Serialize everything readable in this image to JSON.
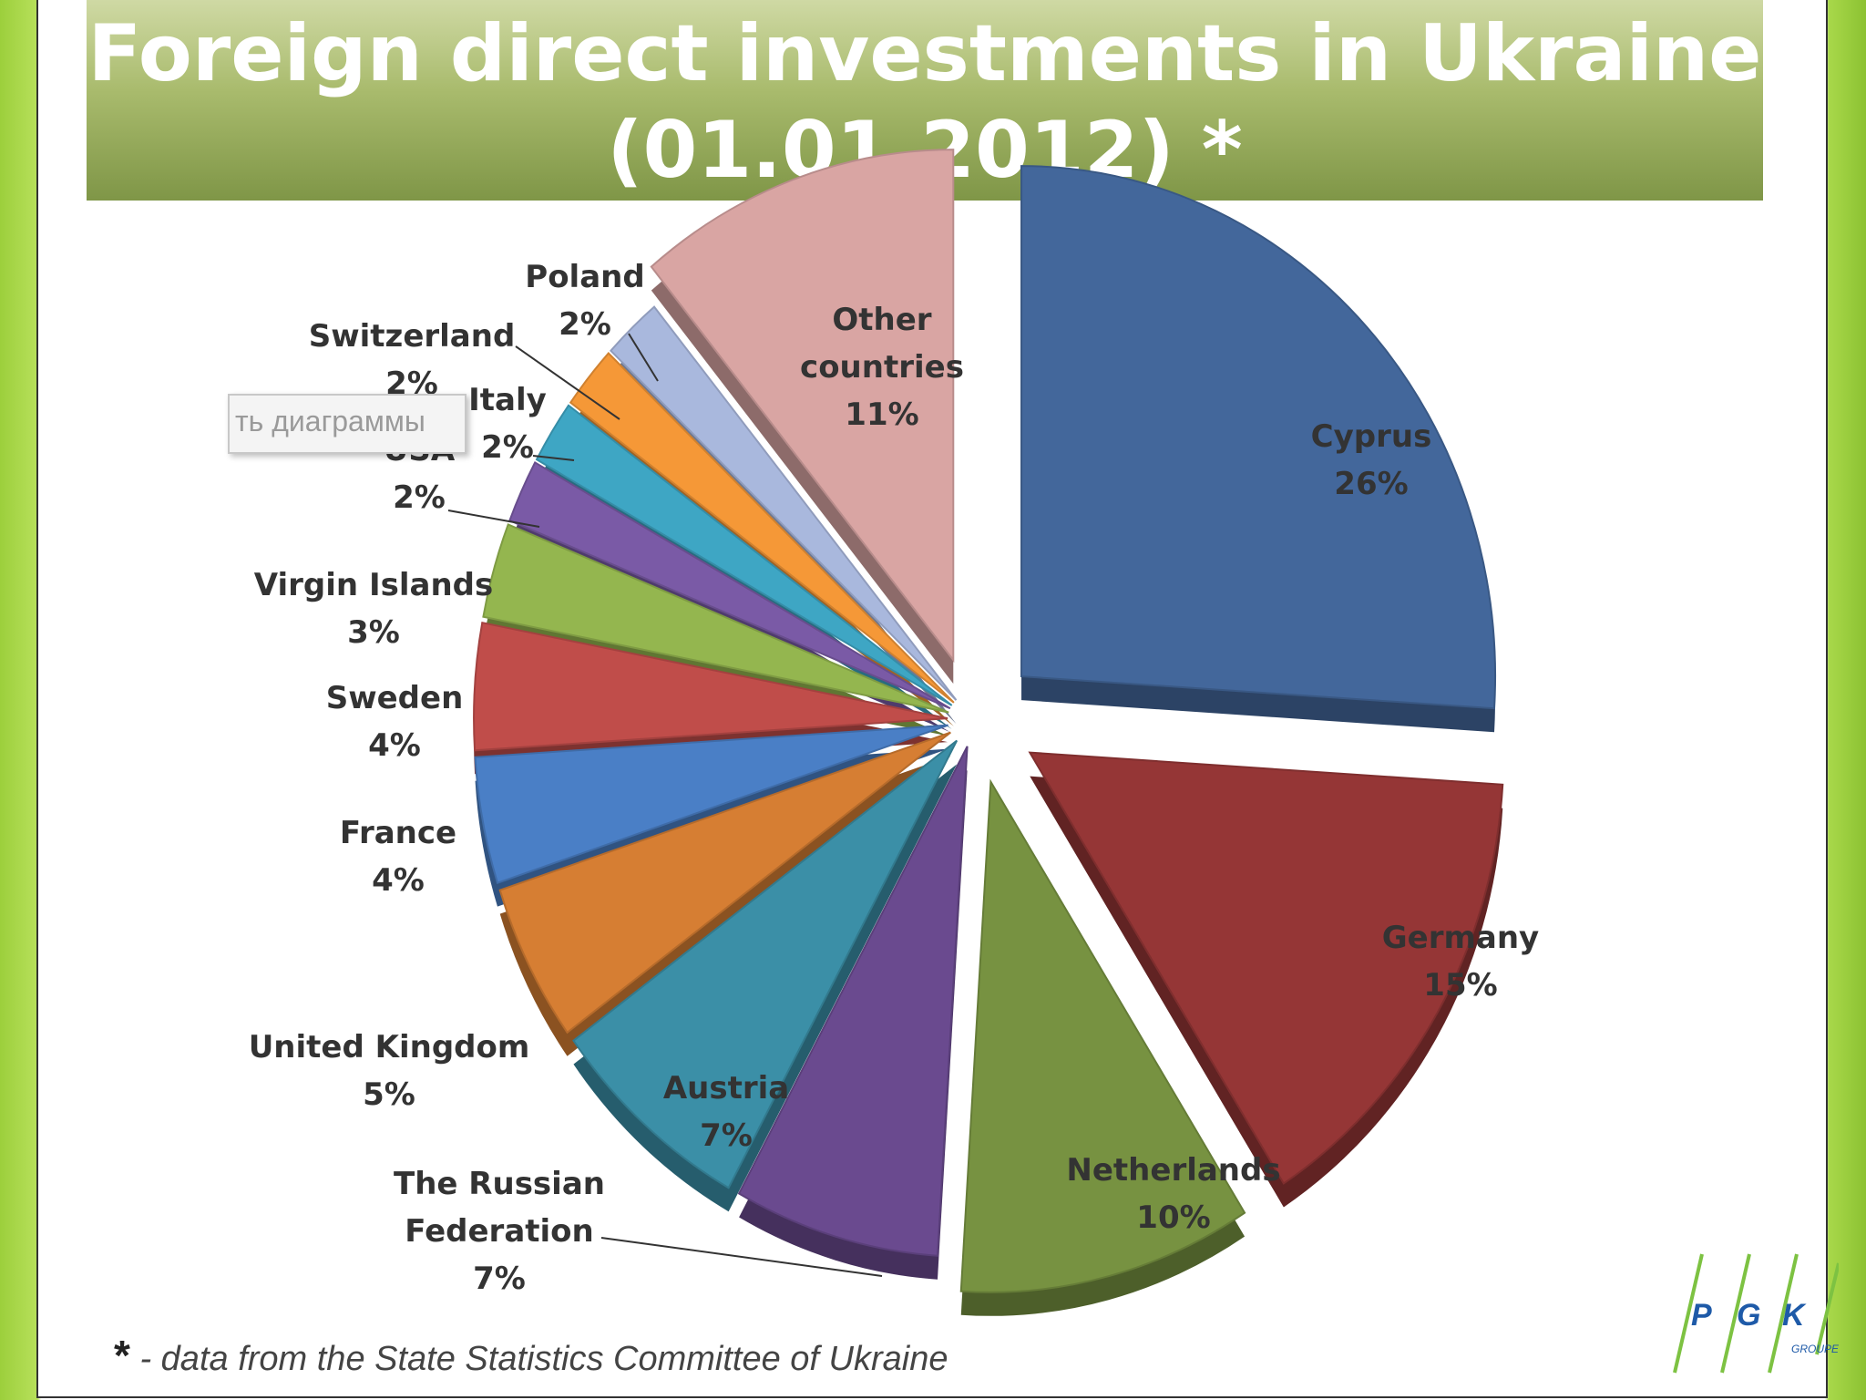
{
  "title_line1": "Foreign direct investments in Ukraine",
  "title_line2": "(01.01.2012) *",
  "chart_data": {
    "type": "pie",
    "title": "Foreign direct investments in Ukraine (01.01.2012) *",
    "unit": "%",
    "slices": [
      {
        "label": "Cyprus",
        "value": 26,
        "display": "26%",
        "color": "#43679b"
      },
      {
        "label": "Germany",
        "value": 15,
        "display": "15%",
        "color": "#953636"
      },
      {
        "label": "Netherlands",
        "value": 10,
        "display": "10%",
        "color": "#779241"
      },
      {
        "label": "The Russian Federation",
        "value": 7,
        "display": "7%",
        "color": "#6a4a8f"
      },
      {
        "label": "Austria",
        "value": 7,
        "display": "7%",
        "color": "#3b8fa7"
      },
      {
        "label": "United Kingdom",
        "value": 5,
        "display": "5%",
        "color": "#d67e33"
      },
      {
        "label": "France",
        "value": 4,
        "display": "4%",
        "color": "#4a7fc6"
      },
      {
        "label": "Sweden",
        "value": 4,
        "display": "4%",
        "color": "#c04d4a"
      },
      {
        "label": "Virgin Islands",
        "value": 3,
        "display": "3%",
        "color": "#94b64f"
      },
      {
        "label": "USA",
        "value": 2,
        "display": "2%",
        "color": "#7a5aa6"
      },
      {
        "label": "Italy",
        "value": 2,
        "display": "2%",
        "color": "#3ea6c4"
      },
      {
        "label": "Switzerland",
        "value": 2,
        "display": "2%",
        "color": "#f59837"
      },
      {
        "label": "Poland",
        "value": 2,
        "display": "2%",
        "color": "#a9b8dd"
      },
      {
        "label": "Other countries",
        "value": 11,
        "display": "11%",
        "color": "#d9a5a3"
      }
    ]
  },
  "footnote": {
    "star": "*",
    "text": " - data from the State Statistics Committee of Ukraine"
  },
  "overlay_text": "ть диаграммы",
  "logo": {
    "letters": [
      "P",
      "G",
      "K"
    ],
    "sub": "GROUPE",
    "color": "#1e5aa8"
  }
}
